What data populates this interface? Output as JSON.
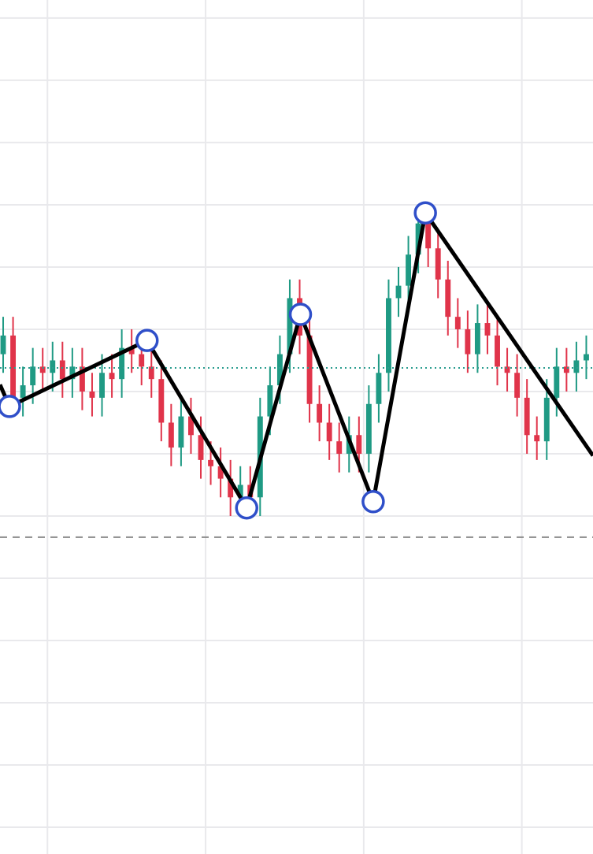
{
  "chart_data": {
    "type": "candlestick",
    "xlim": [
      -0.3,
      3.45
    ],
    "ylim": [
      -0.43,
      13.29
    ],
    "xticks": [
      0,
      1,
      2,
      3
    ],
    "yticks": [
      0,
      1,
      2,
      3,
      4,
      5,
      6,
      7,
      8,
      9,
      10,
      11,
      12,
      13
    ],
    "grid": true,
    "up_color": "#1f9a84",
    "down_color": "#e0344a",
    "x": [
      -0.28,
      -0.2175,
      -0.155,
      -0.0925,
      -0.03,
      0.0325,
      0.095,
      0.1575,
      0.22,
      0.2825,
      0.345,
      0.4075,
      0.47,
      0.5325,
      0.595,
      0.6575,
      0.72,
      0.7825,
      0.845,
      0.9075,
      0.97,
      1.0325,
      1.095,
      1.1575,
      1.22,
      1.2825,
      1.345,
      1.4075,
      1.47,
      1.5325,
      1.595,
      1.6575,
      1.72,
      1.7825,
      1.845,
      1.9075,
      1.97,
      2.0325,
      2.095,
      2.1575,
      2.22,
      2.2825,
      2.345,
      2.4075,
      2.47,
      2.5325,
      2.595,
      2.6575,
      2.72,
      2.7825,
      2.845,
      2.9075,
      2.97,
      3.0325,
      3.095,
      3.1575,
      3.22,
      3.2825,
      3.345,
      3.4075
    ],
    "open": [
      7.6,
      7.9,
      6.9,
      7.1,
      7.4,
      7.3,
      7.5,
      7.2,
      7.4,
      7.0,
      6.9,
      7.3,
      7.2,
      7.7,
      7.6,
      7.4,
      7.2,
      6.5,
      6.1,
      6.6,
      6.3,
      5.9,
      5.8,
      5.6,
      5.3,
      5.5,
      5.3,
      6.6,
      7.1,
      7.6,
      8.5,
      7.9,
      6.8,
      6.5,
      6.2,
      6.0,
      6.3,
      6.0,
      6.8,
      7.3,
      8.5,
      8.7,
      9.2,
      9.7,
      9.3,
      8.8,
      8.2,
      8.0,
      7.6,
      8.1,
      7.9,
      7.4,
      7.3,
      6.9,
      6.3,
      6.2,
      6.9,
      7.4,
      7.3,
      7.5
    ],
    "high": [
      8.2,
      8.2,
      7.4,
      7.7,
      7.7,
      7.8,
      7.8,
      7.7,
      7.7,
      7.3,
      7.6,
      7.6,
      8.0,
      8.0,
      7.9,
      7.7,
      7.5,
      6.8,
      6.9,
      6.9,
      6.6,
      6.2,
      6.1,
      5.9,
      5.8,
      5.8,
      6.9,
      7.4,
      7.9,
      8.8,
      8.8,
      8.2,
      7.1,
      6.8,
      6.5,
      6.6,
      6.6,
      7.1,
      7.6,
      8.8,
      9.0,
      9.5,
      10.0,
      10.0,
      9.6,
      9.1,
      8.5,
      8.3,
      8.4,
      8.4,
      8.2,
      7.7,
      7.6,
      7.2,
      6.6,
      7.2,
      7.7,
      7.7,
      7.8,
      7.9
    ],
    "low": [
      7.3,
      6.6,
      6.6,
      6.8,
      7.0,
      7.0,
      6.9,
      6.9,
      6.7,
      6.6,
      6.6,
      6.9,
      6.9,
      7.3,
      7.1,
      6.9,
      6.2,
      5.8,
      5.8,
      6.0,
      5.6,
      5.5,
      5.3,
      5.0,
      5.0,
      5.0,
      5.0,
      6.3,
      6.8,
      7.3,
      7.6,
      6.5,
      6.2,
      5.9,
      5.7,
      5.7,
      5.7,
      5.7,
      6.5,
      7.0,
      8.2,
      8.4,
      8.9,
      9.0,
      8.5,
      7.9,
      7.7,
      7.3,
      7.3,
      7.6,
      7.1,
      7.0,
      6.6,
      6.0,
      5.9,
      5.9,
      6.6,
      7.0,
      7.0,
      7.2
    ],
    "close": [
      7.9,
      6.9,
      7.1,
      7.4,
      7.3,
      7.5,
      7.2,
      7.4,
      7.0,
      6.9,
      7.3,
      7.2,
      7.7,
      7.6,
      7.4,
      7.2,
      6.5,
      6.1,
      6.6,
      6.3,
      5.9,
      5.8,
      5.6,
      5.3,
      5.5,
      5.3,
      6.6,
      7.1,
      7.6,
      8.5,
      7.9,
      6.8,
      6.5,
      6.2,
      6.0,
      6.3,
      6.0,
      6.8,
      7.3,
      8.5,
      8.7,
      9.2,
      9.7,
      9.3,
      8.8,
      8.2,
      8.0,
      7.6,
      8.1,
      7.9,
      7.4,
      7.3,
      6.9,
      6.3,
      6.2,
      6.9,
      7.4,
      7.3,
      7.5,
      7.6
    ],
    "hlines": [
      {
        "value": 7.38,
        "style": "dotted",
        "color": "#2a9d8f"
      },
      {
        "value": 4.66,
        "style": "dashed",
        "color": "#8a8a8a"
      }
    ],
    "zigzag": {
      "color": "#000000",
      "marker_color": "#2f4fc9",
      "x": [
        -0.3,
        -0.24,
        0.63,
        1.26,
        1.6,
        2.06,
        2.39,
        3.45
      ],
      "values": [
        7.11,
        6.76,
        7.82,
        5.13,
        8.24,
        5.23,
        9.87,
        5.97
      ]
    }
  }
}
